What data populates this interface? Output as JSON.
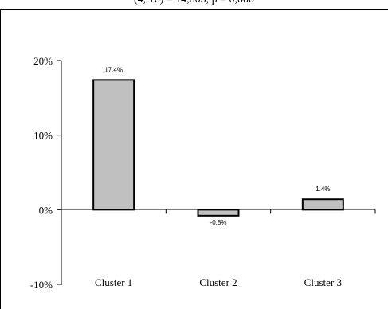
{
  "caption": "(4, 16) = 14,805, p = 0,000",
  "chart_data": {
    "type": "bar",
    "categories": [
      "Cluster 1",
      "Cluster 2",
      "Cluster 3"
    ],
    "values": [
      17.4,
      -0.8,
      1.4
    ],
    "value_labels": [
      "17.4%",
      "-0.8%",
      "1.4%"
    ],
    "ylim": [
      -10,
      20
    ],
    "yticks": [
      -10,
      0,
      10,
      20
    ],
    "ytick_labels": [
      "-10%",
      "0%",
      "10%",
      "20%"
    ],
    "bar_color": "#c0c0c0",
    "title": "",
    "xlabel": "",
    "ylabel": "",
    "grid": false,
    "legend": "none"
  }
}
